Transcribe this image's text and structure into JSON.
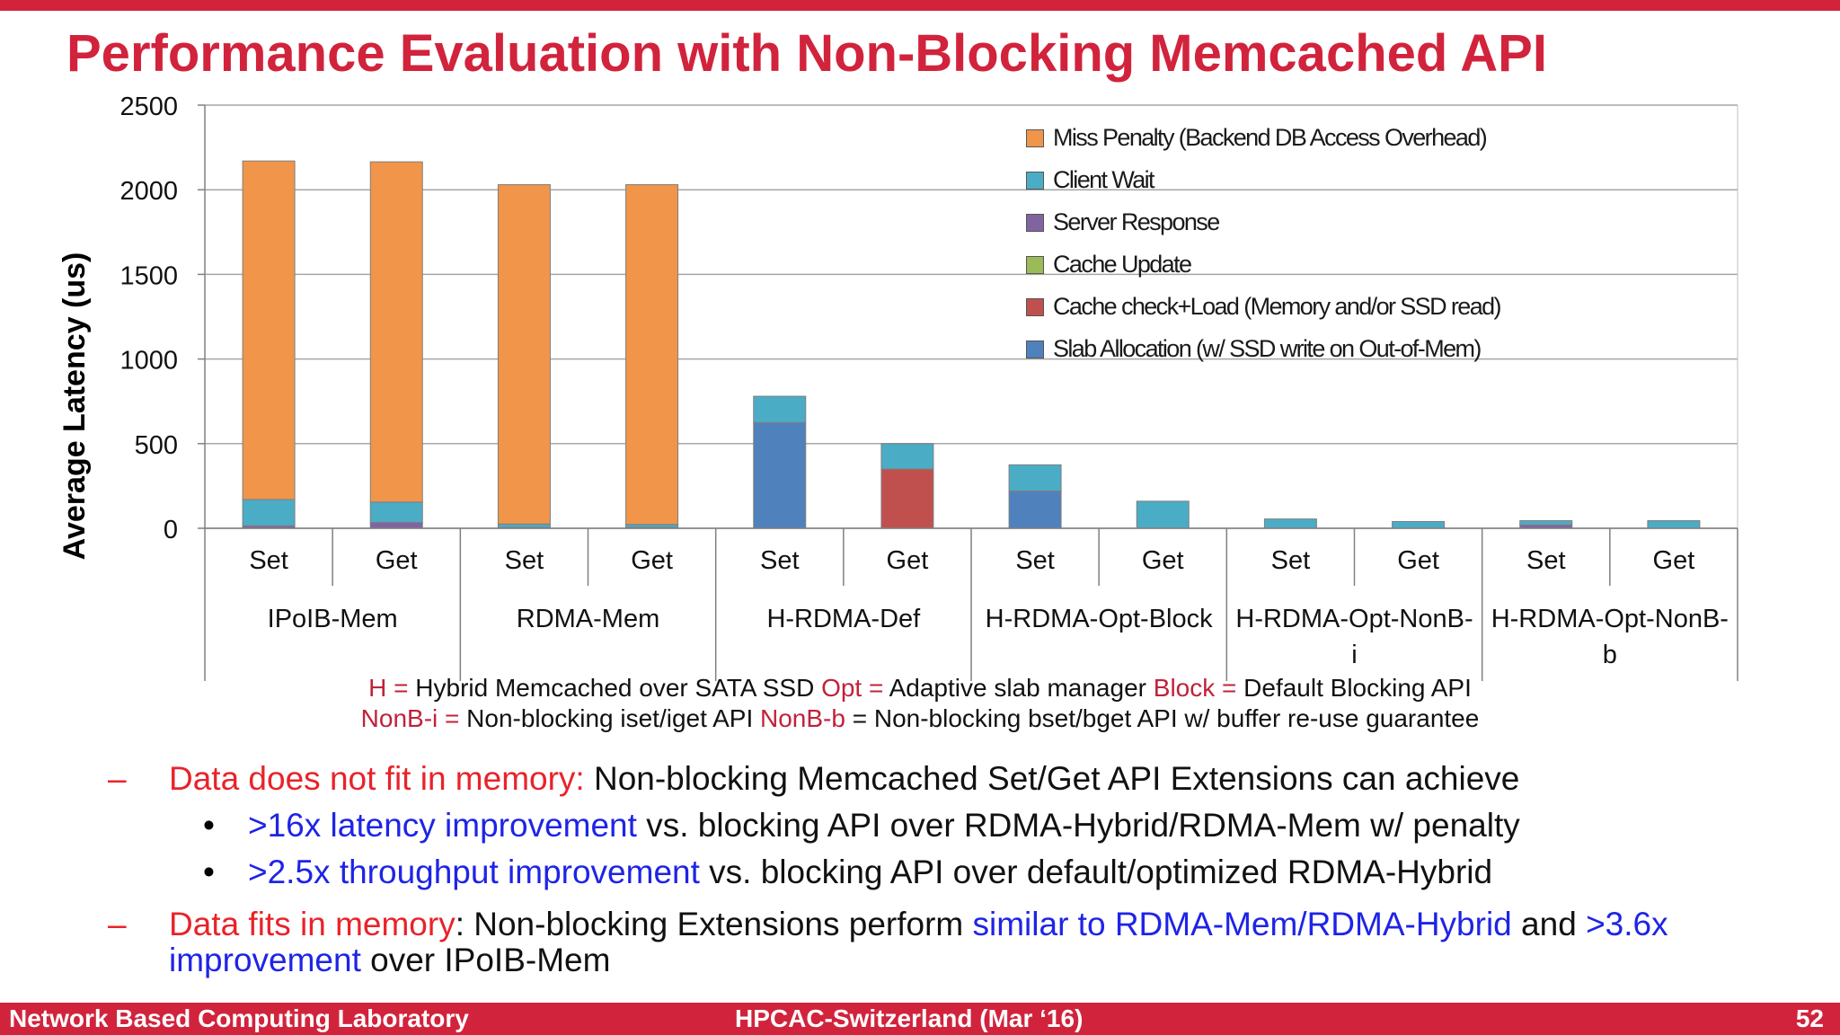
{
  "slide_title": "Performance Evaluation with Non-Blocking Memcached API",
  "chart_data": {
    "type": "bar",
    "stacked": true,
    "ylabel": "Average Latency (us)",
    "ylim": [
      0,
      2500
    ],
    "yticks": [
      0,
      500,
      1000,
      1500,
      2000,
      2500
    ],
    "grid": true,
    "legend_position": "top-right",
    "categories": [
      "Set",
      "Get",
      "Set",
      "Get",
      "Set",
      "Get",
      "Set",
      "Get",
      "Set",
      "Get",
      "Set",
      "Get"
    ],
    "groups": [
      "IPoIB-Mem",
      "RDMA-Mem",
      "H-RDMA-Def",
      "H-RDMA-Opt-Block",
      "H-RDMA-Opt-NonB-i",
      "H-RDMA-Opt-NonB-b"
    ],
    "group_label_lines": [
      [
        "IPoIB-Mem"
      ],
      [
        "RDMA-Mem"
      ],
      [
        "H-RDMA-Def"
      ],
      [
        "H-RDMA-Opt-Block"
      ],
      [
        "H-RDMA-Opt-NonB-",
        "i"
      ],
      [
        "H-RDMA-Opt-NonB-",
        "b"
      ]
    ],
    "series": [
      {
        "name": "Slab Allocation (w/ SSD write on Out-of-Mem)",
        "color": "#4f81bd",
        "values": [
          0,
          0,
          0,
          0,
          625,
          0,
          220,
          0,
          0,
          0,
          0,
          0
        ]
      },
      {
        "name": "Cache check+Load (Memory and/or SSD read)",
        "color": "#c0504d",
        "values": [
          0,
          0,
          0,
          0,
          0,
          350,
          0,
          0,
          0,
          0,
          0,
          0
        ]
      },
      {
        "name": "Cache Update",
        "color": "#9bbb59",
        "values": [
          0,
          0,
          0,
          0,
          0,
          0,
          0,
          0,
          0,
          0,
          0,
          0
        ]
      },
      {
        "name": "Server Response",
        "color": "#8064a2",
        "values": [
          15,
          35,
          5,
          5,
          0,
          0,
          0,
          0,
          0,
          0,
          20,
          0
        ]
      },
      {
        "name": "Client Wait",
        "color": "#4bacc6",
        "values": [
          155,
          120,
          20,
          18,
          155,
          150,
          155,
          160,
          55,
          40,
          25,
          45
        ]
      },
      {
        "name": "Miss Penalty (Backend DB Access Overhead)",
        "color": "#f0954a",
        "values": [
          2000,
          2010,
          2005,
          2007,
          0,
          0,
          0,
          0,
          0,
          0,
          0,
          0
        ]
      }
    ],
    "legend_order": [
      "Miss Penalty (Backend DB Access Overhead)",
      "Client Wait",
      "Server Response",
      "Cache Update",
      "Cache check+Load (Memory and/or SSD read)",
      "Slab Allocation (w/ SSD write on Out-of-Mem)"
    ]
  },
  "abbreviations": {
    "line1": [
      {
        "key": "H =",
        "text": " Hybrid Memcached over SATA SSD  "
      },
      {
        "key": "Opt =",
        "text": " Adaptive slab manager  "
      },
      {
        "key": "Block =",
        "text": " Default Blocking API"
      }
    ],
    "line2": [
      {
        "key": "NonB-i =",
        "text": " Non-blocking iset/iget API   "
      },
      {
        "key": "NonB-b",
        "text": " = Non-blocking bset/bget API w/ buffer re-use guarantee"
      }
    ]
  },
  "bullets": {
    "b1_red": "Data does not fit in memory:",
    "b1_text": " Non-blocking Memcached Set/Get API Extensions can achieve",
    "b1a_blue": ">16x latency improvement",
    "b1a_text": " vs. blocking API over RDMA-Hybrid/RDMA-Mem w/ penalty",
    "b1b_blue": ">2.5x throughput improvement",
    "b1b_text": " vs. blocking API over default/optimized RDMA-Hybrid",
    "b2_red": "Data fits in memory",
    "b2_text1": ": Non-blocking Extensions perform ",
    "b2_blue1": "similar to RDMA-Mem/RDMA-Hybrid",
    "b2_text2": " and ",
    "b2_blue2": ">3.6x",
    "b2_blue3": "improvement",
    "b2_text3": " over IPoIB-Mem",
    "dash": "–",
    "dot": "•"
  },
  "footer": {
    "left": "Network Based Computing Laboratory",
    "center": "HPCAC-Switzerland (Mar ‘16)",
    "right": "52"
  }
}
